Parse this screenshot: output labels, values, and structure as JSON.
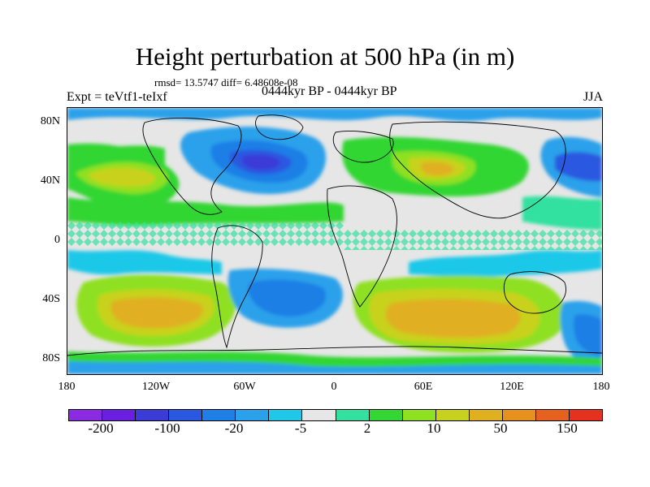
{
  "title": "Height perturbation at 500 hPa (in m)",
  "stats": "rmsd= 13.5747 diff= 6.48608e-08",
  "experiment": "Expt = teVtf1-teIxf",
  "period": "0444kyr BP - 0444kyr BP",
  "season": "JJA",
  "lat_ticks": [
    "80N",
    "40N",
    "0",
    "40S",
    "80S"
  ],
  "lon_ticks": [
    "180",
    "120W",
    "60W",
    "0",
    "60E",
    "120E",
    "180"
  ],
  "colorbar": {
    "colors": [
      "#8a2be2",
      "#6a1fe0",
      "#3b3bd8",
      "#2b58e0",
      "#1e7fe6",
      "#2aa1ea",
      "#1fc8e8",
      "#e6e6e6",
      "#33e0a0",
      "#33d633",
      "#8fe020",
      "#c8d21e",
      "#e0b020",
      "#e6901e",
      "#e66020",
      "#e63020"
    ],
    "labels": [
      "-200",
      "-100",
      "-20",
      "-5",
      "2",
      "10",
      "50",
      "150"
    ]
  },
  "chart_data": {
    "type": "filled contour map",
    "variable": "Height perturbation at 500 hPa",
    "units": "m",
    "season": "JJA",
    "lat_range": [
      -90,
      90
    ],
    "lon_range": [
      -180,
      180
    ],
    "color_levels": [
      -200,
      -100,
      -20,
      -5,
      2,
      10,
      50,
      150
    ],
    "features": [
      {
        "region": "North Atlantic",
        "lon": -45,
        "lat": 42,
        "sign": "negative",
        "approx": -100
      },
      {
        "region": "Central Asia",
        "lon": 60,
        "lat": 42,
        "sign": "positive",
        "approx": 50
      },
      {
        "region": "North Pacific",
        "lon": -150,
        "lat": 40,
        "sign": "positive",
        "approx": 50
      },
      {
        "region": "South Pacific",
        "lon": -130,
        "lat": -48,
        "sign": "positive",
        "approx": 50
      },
      {
        "region": "Southern Indian Ocean",
        "lon": 90,
        "lat": -50,
        "sign": "positive",
        "approx": 50
      },
      {
        "region": "South Atlantic",
        "lon": -30,
        "lat": -40,
        "sign": "negative",
        "approx": -20
      },
      {
        "region": "West Pacific high latitudes",
        "lon": 165,
        "lat": -60,
        "sign": "negative",
        "approx": -20
      }
    ]
  }
}
